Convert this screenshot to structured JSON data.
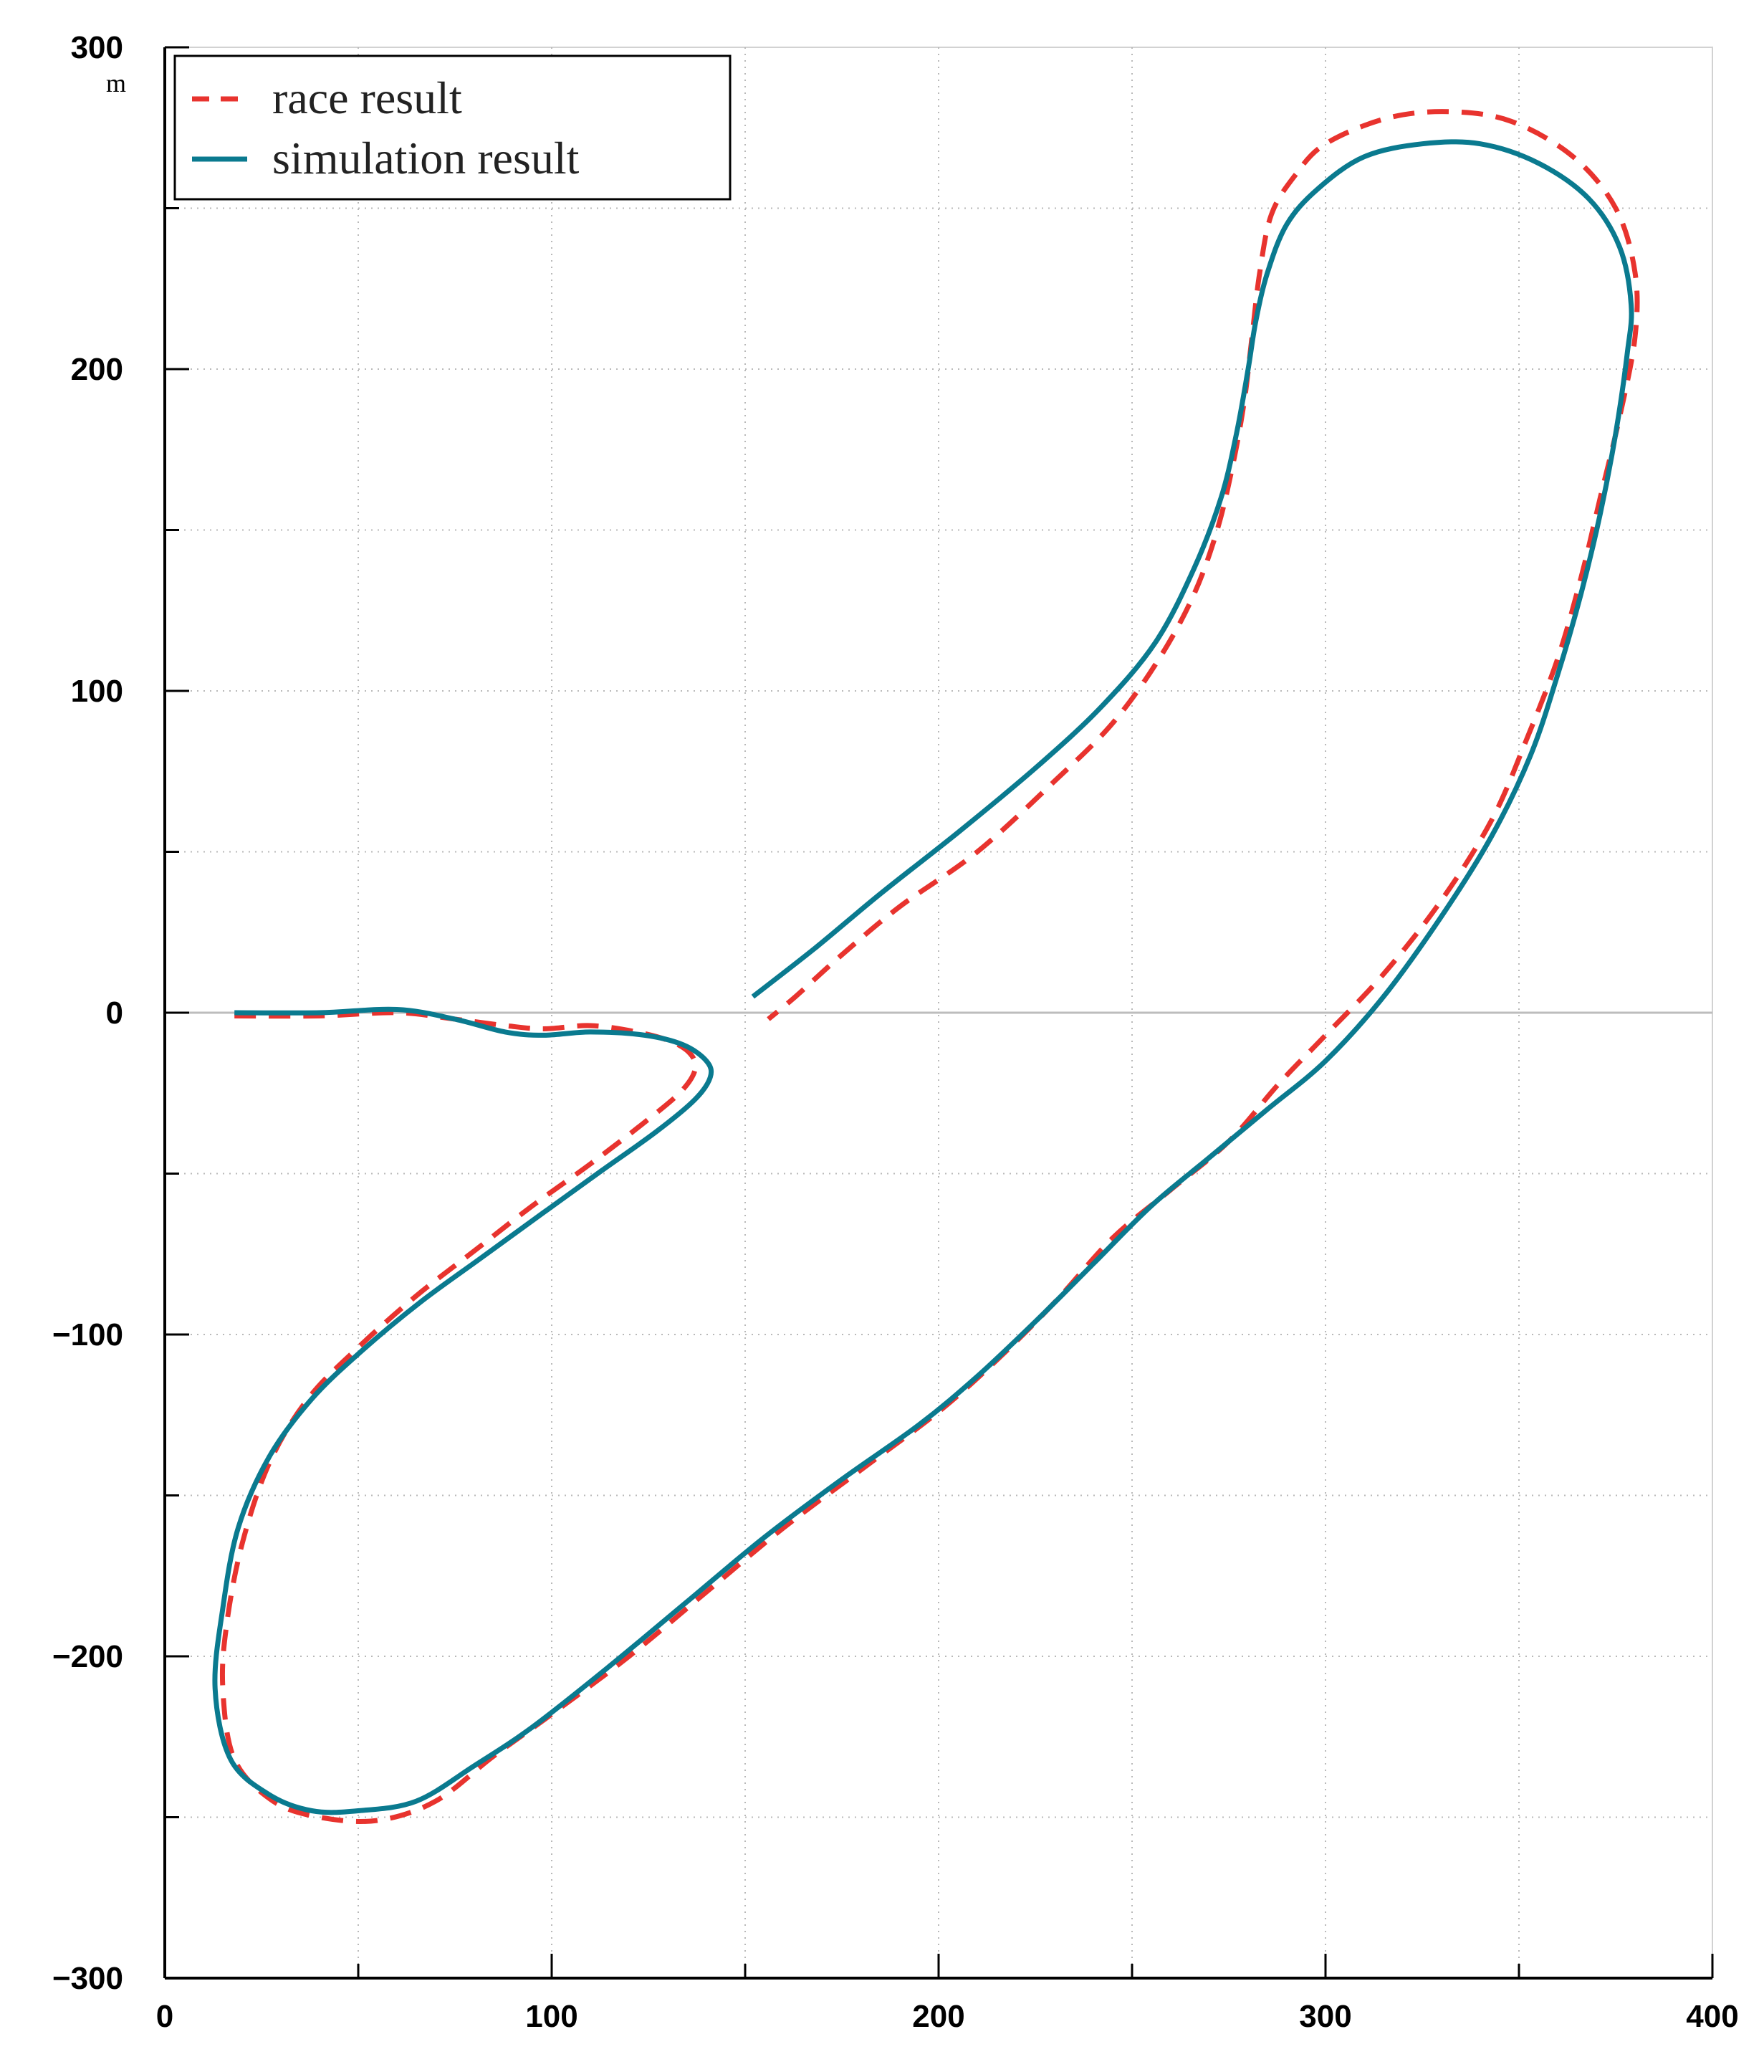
{
  "chart_data": {
    "type": "line",
    "title": "",
    "xlabel": "",
    "ylabel": "",
    "y_unit": "m",
    "xlim": [
      0,
      400
    ],
    "ylim": [
      -300,
      300
    ],
    "x_ticks": [
      0,
      100,
      200,
      300,
      400
    ],
    "y_ticks": [
      300,
      200,
      100,
      0,
      -100,
      -200,
      -300
    ],
    "x_tick_labels": [
      "0",
      "100",
      "200",
      "300",
      "400"
    ],
    "y_tick_labels": [
      "300",
      "200",
      "100",
      "0",
      "−100",
      "−200",
      "−300"
    ],
    "grid": true,
    "legend_position": "top-left",
    "series": [
      {
        "name": "race result",
        "style": "dashed",
        "color": "#e8332e",
        "points": [
          [
            18,
            -1
          ],
          [
            40,
            -1
          ],
          [
            60,
            0
          ],
          [
            75,
            -2
          ],
          [
            88,
            -4
          ],
          [
            98,
            -5
          ],
          [
            110,
            -4
          ],
          [
            122,
            -6
          ],
          [
            131,
            -9
          ],
          [
            136,
            -13
          ],
          [
            137,
            -18
          ],
          [
            133,
            -25
          ],
          [
            123,
            -35
          ],
          [
            110,
            -47
          ],
          [
            95,
            -60
          ],
          [
            80,
            -74
          ],
          [
            65,
            -88
          ],
          [
            50,
            -104
          ],
          [
            37,
            -120
          ],
          [
            27,
            -140
          ],
          [
            20,
            -165
          ],
          [
            16,
            -190
          ],
          [
            15,
            -210
          ],
          [
            18,
            -232
          ],
          [
            28,
            -245
          ],
          [
            40,
            -250
          ],
          [
            55,
            -251
          ],
          [
            70,
            -245
          ],
          [
            85,
            -231
          ],
          [
            100,
            -218
          ],
          [
            120,
            -200
          ],
          [
            140,
            -180
          ],
          [
            160,
            -160
          ],
          [
            180,
            -142
          ],
          [
            200,
            -124
          ],
          [
            215,
            -108
          ],
          [
            230,
            -90
          ],
          [
            245,
            -70
          ],
          [
            260,
            -55
          ],
          [
            275,
            -40
          ],
          [
            288,
            -22
          ],
          [
            300,
            -7
          ],
          [
            315,
            12
          ],
          [
            330,
            35
          ],
          [
            343,
            60
          ],
          [
            352,
            85
          ],
          [
            360,
            110
          ],
          [
            366,
            135
          ],
          [
            371,
            160
          ],
          [
            376,
            185
          ],
          [
            380,
            210
          ],
          [
            380,
            230
          ],
          [
            375,
            250
          ],
          [
            364,
            266
          ],
          [
            348,
            277
          ],
          [
            332,
            280
          ],
          [
            316,
            278
          ],
          [
            300,
            270
          ],
          [
            292,
            260
          ],
          [
            286,
            248
          ],
          [
            283,
            230
          ],
          [
            281,
            210
          ],
          [
            279,
            190
          ],
          [
            276,
            170
          ],
          [
            272,
            150
          ],
          [
            266,
            130
          ],
          [
            257,
            110
          ],
          [
            245,
            90
          ],
          [
            230,
            72
          ],
          [
            210,
            50
          ],
          [
            190,
            33
          ],
          [
            175,
            18
          ],
          [
            163,
            5
          ],
          [
            156,
            -2
          ]
        ]
      },
      {
        "name": "simulation result",
        "style": "solid",
        "color": "#0a7a8f",
        "points": [
          [
            18,
            0
          ],
          [
            40,
            0
          ],
          [
            60,
            1
          ],
          [
            75,
            -2
          ],
          [
            88,
            -6
          ],
          [
            98,
            -7
          ],
          [
            110,
            -6
          ],
          [
            124,
            -7
          ],
          [
            134,
            -10
          ],
          [
            140,
            -15
          ],
          [
            141,
            -20
          ],
          [
            137,
            -27
          ],
          [
            127,
            -37
          ],
          [
            113,
            -49
          ],
          [
            98,
            -62
          ],
          [
            82,
            -76
          ],
          [
            66,
            -90
          ],
          [
            51,
            -105
          ],
          [
            38,
            -120
          ],
          [
            27,
            -138
          ],
          [
            19,
            -160
          ],
          [
            15,
            -185
          ],
          [
            13,
            -210
          ],
          [
            17,
            -232
          ],
          [
            27,
            -243
          ],
          [
            38,
            -248
          ],
          [
            50,
            -248
          ],
          [
            65,
            -245
          ],
          [
            80,
            -234
          ],
          [
            95,
            -222
          ],
          [
            115,
            -203
          ],
          [
            135,
            -183
          ],
          [
            155,
            -163
          ],
          [
            175,
            -145
          ],
          [
            195,
            -128
          ],
          [
            210,
            -113
          ],
          [
            225,
            -96
          ],
          [
            240,
            -78
          ],
          [
            255,
            -60
          ],
          [
            270,
            -45
          ],
          [
            285,
            -30
          ],
          [
            300,
            -15
          ],
          [
            315,
            5
          ],
          [
            330,
            30
          ],
          [
            343,
            55
          ],
          [
            353,
            80
          ],
          [
            360,
            105
          ],
          [
            366,
            130
          ],
          [
            371,
            155
          ],
          [
            375,
            180
          ],
          [
            378,
            205
          ],
          [
            379,
            220
          ],
          [
            376,
            238
          ],
          [
            368,
            253
          ],
          [
            355,
            264
          ],
          [
            340,
            270
          ],
          [
            325,
            270
          ],
          [
            310,
            266
          ],
          [
            298,
            256
          ],
          [
            290,
            245
          ],
          [
            285,
            230
          ],
          [
            282,
            215
          ],
          [
            280,
            200
          ],
          [
            277,
            180
          ],
          [
            273,
            160
          ],
          [
            266,
            138
          ],
          [
            256,
            115
          ],
          [
            242,
            95
          ],
          [
            225,
            76
          ],
          [
            205,
            56
          ],
          [
            185,
            37
          ],
          [
            168,
            20
          ],
          [
            152,
            5
          ]
        ]
      }
    ]
  },
  "legend": {
    "items": [
      {
        "label": "race result",
        "color": "#e8332e",
        "style": "dashed"
      },
      {
        "label": "simulation result",
        "color": "#0a7a8f",
        "style": "solid"
      }
    ]
  }
}
